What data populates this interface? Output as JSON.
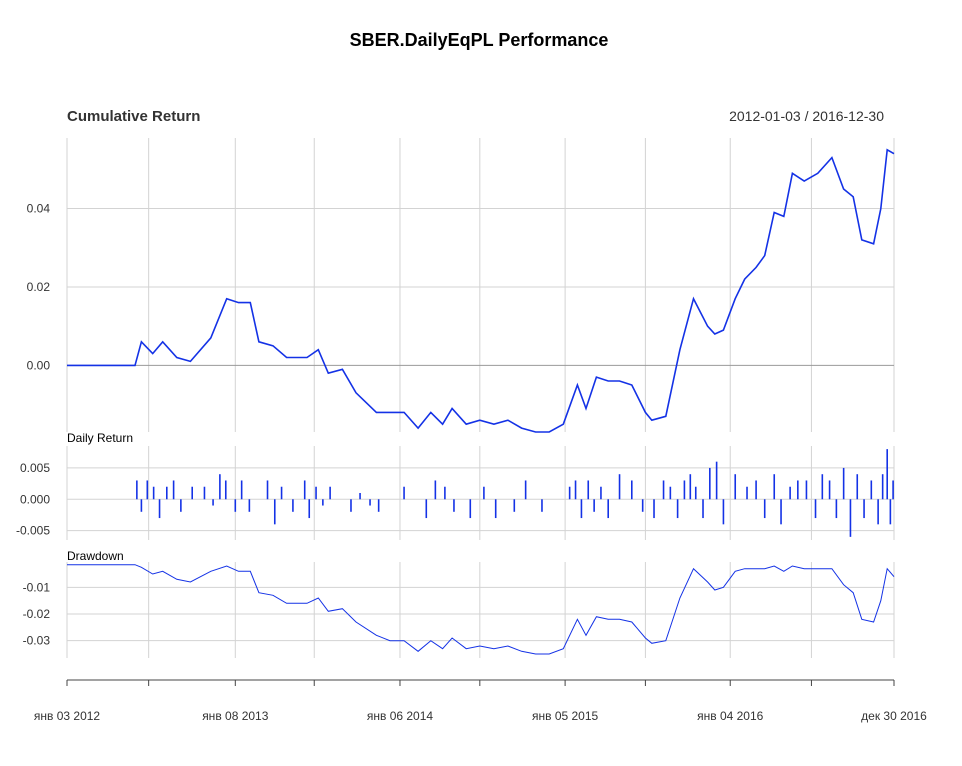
{
  "title": "SBER.DailyEqPL Performance",
  "colors": {
    "series": "#1432e6",
    "grid": "#d3d3d3",
    "zero_line": "#999999",
    "text": "#333333"
  },
  "chart_data": [
    {
      "type": "line",
      "panel": "Cumulative Return",
      "title": "Cumulative Return",
      "date_range_label": "2012-01-03 / 2016-12-30",
      "y_ticks": [
        "0.00",
        "0.02",
        "0.04"
      ],
      "ylim": [
        -0.017,
        0.058
      ],
      "grid": true,
      "x_dates": [
        "2012-01-03",
        "2012-06-01",
        "2012-06-15",
        "2012-07-10",
        "2012-08-01",
        "2012-09-01",
        "2012-10-01",
        "2012-11-15",
        "2012-12-20",
        "2013-01-15",
        "2013-02-10",
        "2013-03-01",
        "2013-04-01",
        "2013-05-01",
        "2013-06-15",
        "2013-07-10",
        "2013-08-01",
        "2013-09-01",
        "2013-10-01",
        "2013-11-15",
        "2013-12-15",
        "2014-01-15",
        "2014-02-15",
        "2014-03-15",
        "2014-04-10",
        "2014-05-01",
        "2014-06-01",
        "2014-07-01",
        "2014-08-01",
        "2014-09-01",
        "2014-10-01",
        "2014-11-01",
        "2014-12-01",
        "2015-01-01",
        "2015-02-01",
        "2015-02-20",
        "2015-03-15",
        "2015-04-10",
        "2015-05-05",
        "2015-06-01",
        "2015-07-01",
        "2015-07-15",
        "2015-08-15",
        "2015-09-15",
        "2015-10-15",
        "2015-11-15",
        "2015-12-01",
        "2015-12-20",
        "2016-01-15",
        "2016-02-05",
        "2016-03-01",
        "2016-03-20",
        "2016-04-10",
        "2016-05-01",
        "2016-05-20",
        "2016-06-15",
        "2016-07-15",
        "2016-08-15",
        "2016-09-10",
        "2016-10-01",
        "2016-10-20",
        "2016-11-15",
        "2016-12-01",
        "2016-12-15",
        "2016-12-30"
      ],
      "values": [
        0.0,
        0.0,
        0.006,
        0.003,
        0.006,
        0.002,
        0.001,
        0.007,
        0.017,
        0.016,
        0.016,
        0.006,
        0.005,
        0.002,
        0.002,
        0.004,
        -0.002,
        -0.001,
        -0.007,
        -0.012,
        -0.012,
        -0.012,
        -0.016,
        -0.012,
        -0.015,
        -0.011,
        -0.015,
        -0.014,
        -0.015,
        -0.014,
        -0.016,
        -0.017,
        -0.017,
        -0.015,
        -0.005,
        -0.011,
        -0.003,
        -0.004,
        -0.004,
        -0.005,
        -0.012,
        -0.014,
        -0.013,
        0.004,
        0.017,
        0.01,
        0.008,
        0.009,
        0.017,
        0.022,
        0.025,
        0.028,
        0.039,
        0.038,
        0.049,
        0.047,
        0.049,
        0.053,
        0.045,
        0.043,
        0.032,
        0.031,
        0.04,
        0.055,
        0.054
      ]
    },
    {
      "type": "bar",
      "panel": "Daily Return",
      "title": "Daily Return",
      "y_ticks": [
        "0.005",
        "0.000",
        "-0.005"
      ],
      "ylim": [
        -0.0065,
        0.0085
      ],
      "grid": true,
      "x_dates": [
        "2012-06-05",
        "2012-06-15",
        "2012-06-28",
        "2012-07-12",
        "2012-07-25",
        "2012-08-10",
        "2012-08-25",
        "2012-09-10",
        "2012-10-05",
        "2012-11-01",
        "2012-11-20",
        "2012-12-05",
        "2012-12-18",
        "2013-01-08",
        "2013-01-22",
        "2013-02-08",
        "2013-03-20",
        "2013-04-05",
        "2013-04-20",
        "2013-05-15",
        "2013-06-10",
        "2013-06-20",
        "2013-07-05",
        "2013-07-20",
        "2013-08-05",
        "2013-09-20",
        "2013-10-10",
        "2013-11-01",
        "2013-11-20",
        "2014-01-15",
        "2014-03-05",
        "2014-03-25",
        "2014-04-15",
        "2014-05-05",
        "2014-06-10",
        "2014-07-10",
        "2014-08-05",
        "2014-09-15",
        "2014-10-10",
        "2014-11-15",
        "2015-01-15",
        "2015-01-28",
        "2015-02-10",
        "2015-02-25",
        "2015-03-10",
        "2015-03-25",
        "2015-04-10",
        "2015-05-05",
        "2015-06-01",
        "2015-06-25",
        "2015-07-20",
        "2015-08-10",
        "2015-08-25",
        "2015-09-10",
        "2015-09-25",
        "2015-10-08",
        "2015-10-20",
        "2015-11-05",
        "2015-11-20",
        "2015-12-05",
        "2015-12-20",
        "2016-01-15",
        "2016-02-10",
        "2016-03-01",
        "2016-03-20",
        "2016-04-10",
        "2016-04-25",
        "2016-05-15",
        "2016-06-01",
        "2016-06-20",
        "2016-07-10",
        "2016-07-25",
        "2016-08-10",
        "2016-08-25",
        "2016-09-10",
        "2016-09-25",
        "2016-10-10",
        "2016-10-25",
        "2016-11-10",
        "2016-11-25",
        "2016-12-05",
        "2016-12-15",
        "2016-12-22",
        "2016-12-28"
      ],
      "values": [
        0.003,
        -0.002,
        0.003,
        0.002,
        -0.003,
        0.002,
        0.003,
        -0.002,
        0.002,
        0.002,
        -0.001,
        0.004,
        0.003,
        -0.002,
        0.003,
        -0.002,
        0.003,
        -0.004,
        0.002,
        -0.002,
        0.003,
        -0.003,
        0.002,
        -0.001,
        0.002,
        -0.002,
        0.001,
        -0.001,
        -0.002,
        0.002,
        -0.003,
        0.003,
        0.002,
        -0.002,
        -0.003,
        0.002,
        -0.003,
        -0.002,
        0.003,
        -0.002,
        0.002,
        0.003,
        -0.003,
        0.003,
        -0.002,
        0.002,
        -0.003,
        0.004,
        0.003,
        -0.002,
        -0.003,
        0.003,
        0.002,
        -0.003,
        0.003,
        0.004,
        0.002,
        -0.003,
        0.005,
        0.006,
        -0.004,
        0.004,
        0.002,
        0.003,
        -0.003,
        0.004,
        -0.004,
        0.002,
        0.003,
        0.003,
        -0.003,
        0.004,
        0.003,
        -0.003,
        0.005,
        -0.006,
        0.004,
        -0.003,
        0.003,
        -0.004,
        0.004,
        0.008,
        -0.004,
        0.003
      ]
    },
    {
      "type": "line",
      "panel": "Drawdown",
      "title": "Drawdown",
      "y_ticks": [
        "-0.01",
        "-0.02",
        "-0.03"
      ],
      "ylim": [
        -0.0365,
        -0.0005
      ],
      "grid": true,
      "x_dates": [
        "2012-01-03",
        "2012-06-01",
        "2012-06-15",
        "2012-07-10",
        "2012-08-01",
        "2012-09-01",
        "2012-10-01",
        "2012-11-15",
        "2012-12-20",
        "2013-01-15",
        "2013-02-10",
        "2013-03-01",
        "2013-04-01",
        "2013-05-01",
        "2013-06-15",
        "2013-07-10",
        "2013-08-01",
        "2013-09-01",
        "2013-10-01",
        "2013-11-15",
        "2013-12-15",
        "2014-01-15",
        "2014-02-15",
        "2014-03-15",
        "2014-04-10",
        "2014-05-01",
        "2014-06-01",
        "2014-07-01",
        "2014-08-01",
        "2014-09-01",
        "2014-10-01",
        "2014-11-01",
        "2014-12-01",
        "2015-01-01",
        "2015-02-01",
        "2015-02-20",
        "2015-03-15",
        "2015-04-10",
        "2015-05-05",
        "2015-06-01",
        "2015-07-01",
        "2015-07-15",
        "2015-08-15",
        "2015-09-15",
        "2015-10-15",
        "2015-11-15",
        "2015-12-01",
        "2015-12-20",
        "2016-01-15",
        "2016-02-05",
        "2016-03-01",
        "2016-03-20",
        "2016-04-10",
        "2016-05-01",
        "2016-05-20",
        "2016-06-15",
        "2016-07-15",
        "2016-08-15",
        "2016-09-10",
        "2016-10-01",
        "2016-10-20",
        "2016-11-15",
        "2016-12-01",
        "2016-12-15",
        "2016-12-30"
      ],
      "values": [
        -0.0015,
        -0.0015,
        -0.0025,
        -0.005,
        -0.004,
        -0.007,
        -0.008,
        -0.004,
        -0.002,
        -0.004,
        -0.004,
        -0.012,
        -0.013,
        -0.016,
        -0.016,
        -0.014,
        -0.019,
        -0.018,
        -0.023,
        -0.028,
        -0.03,
        -0.03,
        -0.034,
        -0.03,
        -0.033,
        -0.029,
        -0.033,
        -0.032,
        -0.033,
        -0.032,
        -0.034,
        -0.035,
        -0.035,
        -0.033,
        -0.022,
        -0.028,
        -0.021,
        -0.022,
        -0.022,
        -0.023,
        -0.029,
        -0.031,
        -0.03,
        -0.014,
        -0.003,
        -0.008,
        -0.011,
        -0.01,
        -0.004,
        -0.003,
        -0.003,
        -0.003,
        -0.002,
        -0.004,
        -0.002,
        -0.003,
        -0.003,
        -0.003,
        -0.009,
        -0.012,
        -0.022,
        -0.023,
        -0.015,
        -0.003,
        -0.006
      ]
    }
  ],
  "x_axis": {
    "tick_labels": [
      "янв 03 2012",
      "янв 08 2013",
      "янв 06 2014",
      "янв 05 2015",
      "янв 04 2016",
      "дек 30 2016"
    ],
    "tick_dates": [
      "2012-01-03",
      "2013-01-08",
      "2014-01-06",
      "2015-01-05",
      "2016-01-04",
      "2016-12-30"
    ],
    "minor_tick_dates": [
      "2012-07-01",
      "2013-07-01",
      "2014-07-01",
      "2015-07-01",
      "2016-07-01"
    ]
  }
}
